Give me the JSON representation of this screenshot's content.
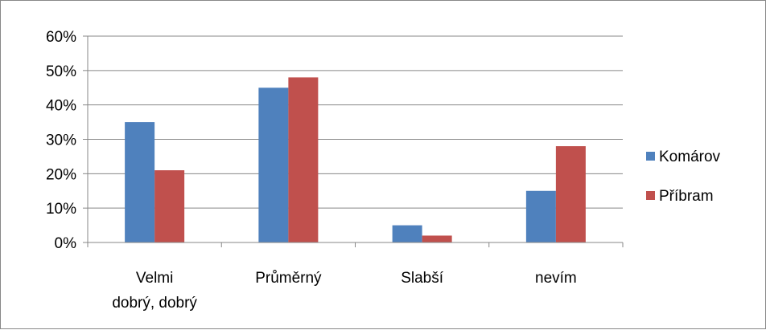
{
  "chart_data": {
    "type": "bar",
    "categories": [
      [
        "Velmi",
        "dobrý, dobrý"
      ],
      [
        "Průměrný"
      ],
      [
        "Slabší"
      ],
      [
        "nevím"
      ]
    ],
    "series": [
      {
        "name": "Komárov",
        "values": [
          35,
          45,
          5,
          15
        ],
        "color": "#4F81BD"
      },
      {
        "name": "Příbram",
        "values": [
          21,
          48,
          2,
          28
        ],
        "color": "#C0504D"
      }
    ],
    "ylim": [
      0,
      60
    ],
    "yticks": [
      0,
      10,
      20,
      30,
      40,
      50,
      60
    ],
    "ytick_format": "percent",
    "ytick_labels": [
      "0%",
      "10%",
      "20%",
      "30%",
      "40%",
      "50%",
      "60%"
    ],
    "grid": true,
    "legend": "right"
  }
}
